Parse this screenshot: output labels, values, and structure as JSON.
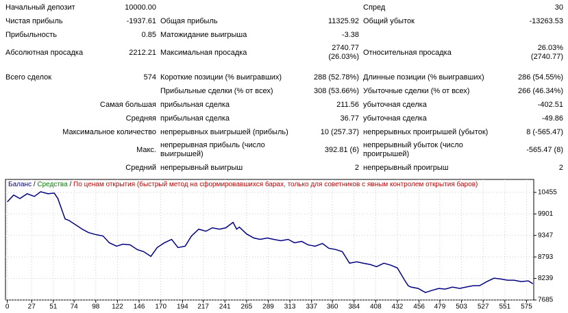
{
  "table": {
    "rows": [
      [
        "Начальный депозит",
        "10000.00",
        null,
        null,
        "Спред",
        "30"
      ],
      [
        "Чистая прибыль",
        "-1937.61",
        "Общая прибыль",
        "11325.92",
        "Общий убыток",
        "-13263.53"
      ],
      [
        "Прибыльность",
        "0.85",
        "Матожидание выигрыша",
        "-3.38",
        null,
        null
      ],
      [
        "Абсолютная просадка",
        "2212.21",
        "Максимальная просадка",
        "2740.77\n(26.03%)",
        "Относительная просадка",
        "26.03%\n(2740.77)"
      ],
      [
        "Всего сделок",
        "574",
        "Короткие позиции (% выигравших)",
        "288 (52.78%)",
        "Длинные позиции (% выигравших)",
        "286 (54.55%)"
      ],
      [
        null,
        null,
        "Прибыльные сделки (% от всех)",
        "308 (53.66%)",
        "Убыточные сделки (% от всех)",
        "266 (46.34%)"
      ],
      [
        "Самая большая",
        null,
        "прибыльная сделка",
        "211.56",
        "убыточная сделка",
        "-402.51"
      ],
      [
        "Средняя",
        null,
        "прибыльная сделка",
        "36.77",
        "убыточная сделка",
        "-49.86"
      ],
      [
        "Максимальное количество",
        null,
        "непрерывных выигрышей (прибыль)",
        "10 (257.37)",
        "непрерывных проигрышей (убыток)",
        "8 (-565.47)"
      ],
      [
        "Макс.",
        null,
        "непрерывная прибыль (число\nвыигрышей)",
        "392.81 (6)",
        "непрерывный убыток (число\nпроигрышей)",
        "-565.47 (8)"
      ],
      [
        "Средний",
        null,
        "непрерывный выигрыш",
        "2",
        "непрерывный проигрыш",
        "2"
      ]
    ]
  },
  "chart_data": {
    "type": "line",
    "legend_separator": "/",
    "equity_label": {
      "text": "Средства",
      "color": "#008000"
    },
    "mode_label": {
      "text": "По ценам открытия (быстрый метод на сформировавшихся барах, только для советников с явным контролем открытия баров)",
      "color": "#c00000"
    },
    "x": [
      0,
      7,
      14,
      22,
      30,
      37,
      45,
      52,
      56,
      60,
      64,
      68,
      75,
      83,
      90,
      98,
      106,
      113,
      121,
      128,
      136,
      144,
      151,
      159,
      166,
      174,
      182,
      189,
      197,
      204,
      212,
      220,
      227,
      235,
      242,
      250,
      254,
      257,
      265,
      273,
      280,
      288,
      295,
      303,
      311,
      318,
      326,
      333,
      341,
      349,
      356,
      364,
      371,
      379,
      387,
      394,
      402,
      409,
      417,
      425,
      432,
      440,
      444,
      447,
      455,
      463,
      470,
      478,
      485,
      493,
      501,
      508,
      516,
      523,
      531,
      539,
      546,
      554,
      561,
      569,
      577,
      582
    ],
    "series": [
      {
        "name": "Баланс",
        "color": "#000080",
        "values": [
          10210,
          10385,
          10297,
          10420,
          10350,
          10472,
          10420,
          10437,
          10297,
          10034,
          9771,
          9736,
          9631,
          9508,
          9420,
          9368,
          9333,
          9158,
          9070,
          9122,
          9105,
          8982,
          8930,
          8807,
          9035,
          9158,
          9245,
          9035,
          9070,
          9333,
          9508,
          9455,
          9543,
          9508,
          9543,
          9684,
          9508,
          9561,
          9385,
          9280,
          9245,
          9280,
          9245,
          9210,
          9245,
          9158,
          9193,
          9105,
          9070,
          9140,
          9017,
          8982,
          8930,
          8632,
          8667,
          8632,
          8597,
          8544,
          8632,
          8579,
          8509,
          8194,
          8053,
          8018,
          7983,
          7878,
          7931,
          7983,
          7966,
          8018,
          7983,
          8018,
          8053,
          8053,
          8158,
          8246,
          8228,
          8194,
          8194,
          8158,
          8176,
          8105
        ]
      }
    ],
    "xlim": [
      -2,
      583
    ],
    "xticks": [
      0,
      27,
      51,
      74,
      98,
      122,
      146,
      170,
      194,
      217,
      241,
      265,
      289,
      313,
      337,
      360,
      384,
      408,
      432,
      456,
      479,
      503,
      527,
      551,
      575
    ],
    "ylim": [
      7685,
      10788
    ],
    "yticks": [
      7685,
      8239,
      8793,
      9347,
      9901,
      10455
    ],
    "grid": true
  }
}
